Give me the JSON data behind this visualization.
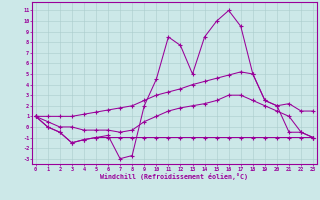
{
  "x": [
    0,
    1,
    2,
    3,
    4,
    5,
    6,
    7,
    8,
    9,
    10,
    11,
    12,
    13,
    14,
    15,
    16,
    17,
    18,
    19,
    20,
    21,
    22,
    23
  ],
  "y_main": [
    1,
    0,
    -0.5,
    -1.5,
    -1.2,
    -1.0,
    -0.8,
    -3.0,
    -2.7,
    2.0,
    4.5,
    8.5,
    7.7,
    5.0,
    8.5,
    10.0,
    11.0,
    9.5,
    5.0,
    2.5,
    2.0,
    -0.5,
    -0.5,
    -1.0
  ],
  "y_upper": [
    1.0,
    1.0,
    1.0,
    1.0,
    1.2,
    1.4,
    1.6,
    1.8,
    2.0,
    2.5,
    3.0,
    3.3,
    3.6,
    4.0,
    4.3,
    4.6,
    4.9,
    5.2,
    5.0,
    2.5,
    2.0,
    2.2,
    1.5,
    1.5
  ],
  "y_lower": [
    1.0,
    0.5,
    0.0,
    0.0,
    -0.3,
    -0.3,
    -0.3,
    -0.5,
    -0.3,
    0.5,
    1.0,
    1.5,
    1.8,
    2.0,
    2.2,
    2.5,
    3.0,
    3.0,
    2.5,
    2.0,
    1.5,
    1.0,
    -0.5,
    -1.0
  ],
  "y_flat": [
    1.0,
    0.0,
    -0.5,
    -1.5,
    -1.2,
    -1.0,
    -1.0,
    -1.0,
    -1.0,
    -1.0,
    -1.0,
    -1.0,
    -1.0,
    -1.0,
    -1.0,
    -1.0,
    -1.0,
    -1.0,
    -1.0,
    -1.0,
    -1.0,
    -1.0,
    -1.0,
    -1.0
  ],
  "color": "#990099",
  "bg_color": "#cce8e8",
  "grid_color": "#aacccc",
  "yticks": [
    11,
    10,
    9,
    8,
    7,
    6,
    5,
    4,
    3,
    2,
    1,
    0,
    -1,
    -2,
    -3
  ],
  "ylim": [
    -3.5,
    11.8
  ],
  "xlim": [
    -0.3,
    23.3
  ],
  "xlabel": "Windchill (Refroidissement éolien,°C)"
}
